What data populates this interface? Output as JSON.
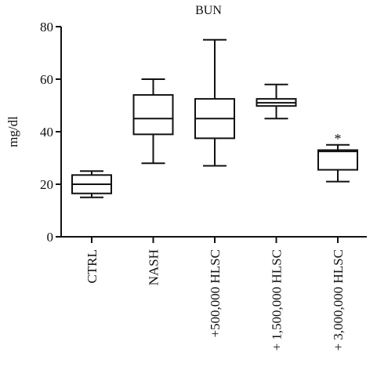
{
  "chart_data": {
    "type": "box",
    "title": "BUN",
    "ylabel": "mg/dl",
    "xlabel": "",
    "ylim": [
      0,
      80
    ],
    "yticks": [
      0,
      20,
      40,
      60,
      80
    ],
    "grid": false,
    "categories": [
      "CTRL",
      "NASH",
      "+500,000 HLSC",
      "+ 1,500,000 HLSC",
      "+ 3,000,000 HLSC"
    ],
    "boxes": [
      {
        "category": "CTRL",
        "min": 15,
        "q1": 16.5,
        "median": 20,
        "q3": 23.5,
        "max": 25,
        "annotation": ""
      },
      {
        "category": "NASH",
        "min": 28,
        "q1": 39,
        "median": 45,
        "q3": 54,
        "max": 60,
        "annotation": ""
      },
      {
        "category": "+500,000 HLSC",
        "min": 27,
        "q1": 37.5,
        "median": 45,
        "q3": 52.5,
        "max": 75,
        "annotation": ""
      },
      {
        "category": "+ 1,500,000 HLSC",
        "min": 45,
        "q1": 49.8,
        "median": 51,
        "q3": 52.5,
        "max": 58,
        "annotation": ""
      },
      {
        "category": "+ 3,000,000 HLSC",
        "min": 21,
        "q1": 25.5,
        "median": 32.5,
        "q3": 33,
        "max": 35,
        "annotation": "*"
      }
    ],
    "colors": {
      "stroke": "#111111",
      "fill": "#ffffff"
    }
  }
}
